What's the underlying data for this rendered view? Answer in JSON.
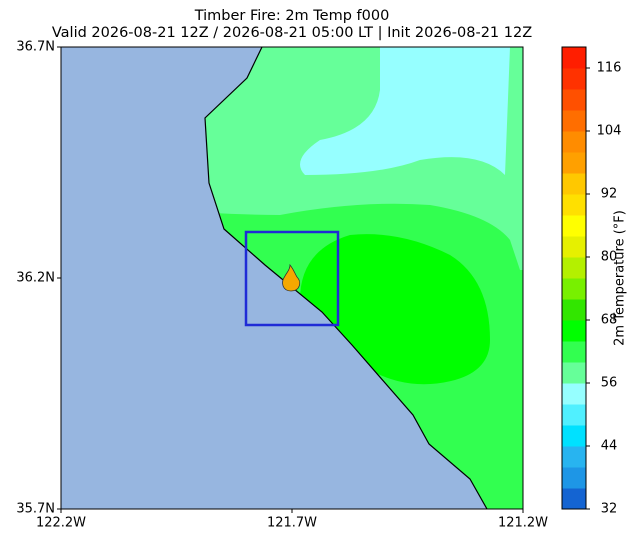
{
  "chart_data": {
    "type": "contour-map",
    "title": "Timber Fire: 2m Temp f000",
    "subtitle": "Valid 2026-08-21 12Z / 2026-08-21 05:00 LT | Init 2026-08-21 12Z",
    "xlim": [
      -122.2,
      -121.2
    ],
    "ylim": [
      35.7,
      36.7
    ],
    "xticks": [
      {
        "value": -122.2,
        "label": "122.2W"
      },
      {
        "value": -121.7,
        "label": "121.7W"
      },
      {
        "value": -121.2,
        "label": "121.2W"
      }
    ],
    "yticks": [
      {
        "value": 35.7,
        "label": "35.7N"
      },
      {
        "value": 36.2,
        "label": "36.2N"
      },
      {
        "value": 36.7,
        "label": "36.7N"
      }
    ],
    "colorbar": {
      "label": "2m Temperature (°F)",
      "clim": [
        32,
        120
      ],
      "ticks": [
        32,
        44,
        56,
        68,
        80,
        92,
        104,
        116
      ],
      "colors": [
        "#1464d2",
        "#1e96e6",
        "#28b4f0",
        "#00e1ff",
        "#50f0ff",
        "#96ffff",
        "#66ff99",
        "#32ff50",
        "#00ff00",
        "#32e600",
        "#78f000",
        "#b4f000",
        "#e6f000",
        "#ffff00",
        "#ffe000",
        "#ffc800",
        "#ffa000",
        "#ff8c00",
        "#ff6e00",
        "#ff5000",
        "#ff3200",
        "#ff1e00"
      ]
    }
  }
}
